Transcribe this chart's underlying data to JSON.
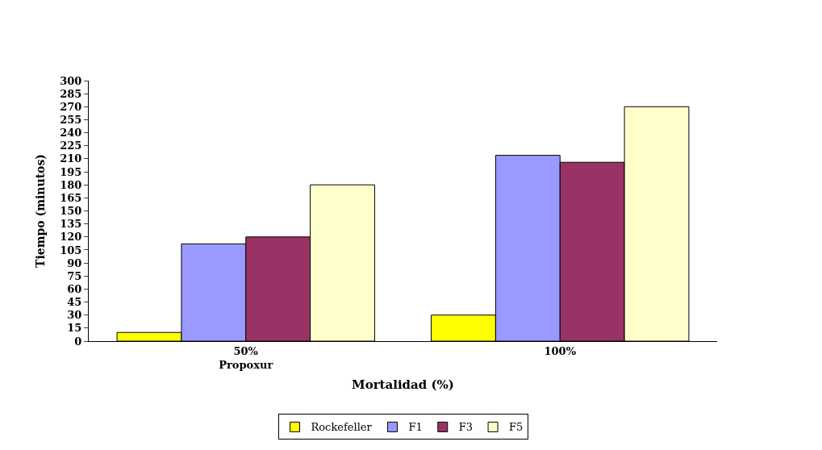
{
  "chart_data": {
    "type": "bar",
    "xlabel": "Mortalidad (%)",
    "ylabel": "Tiempo (minutos)",
    "categories": [
      "50%\nPropoxur",
      "100%"
    ],
    "series": [
      {
        "name": "Rockefeller",
        "color": "#ffff00",
        "values": [
          10,
          30
        ]
      },
      {
        "name": "F1",
        "color": "#9999ff",
        "values": [
          112,
          214
        ]
      },
      {
        "name": "F3",
        "color": "#993366",
        "values": [
          120,
          206
        ]
      },
      {
        "name": "F5",
        "color": "#ffffcc",
        "values": [
          180,
          270
        ]
      }
    ],
    "ylim": [
      0,
      300
    ],
    "yticks": [
      0,
      15,
      30,
      45,
      60,
      75,
      90,
      105,
      120,
      135,
      150,
      165,
      180,
      195,
      210,
      225,
      240,
      255,
      270,
      285,
      300
    ],
    "legend": "bottom"
  }
}
